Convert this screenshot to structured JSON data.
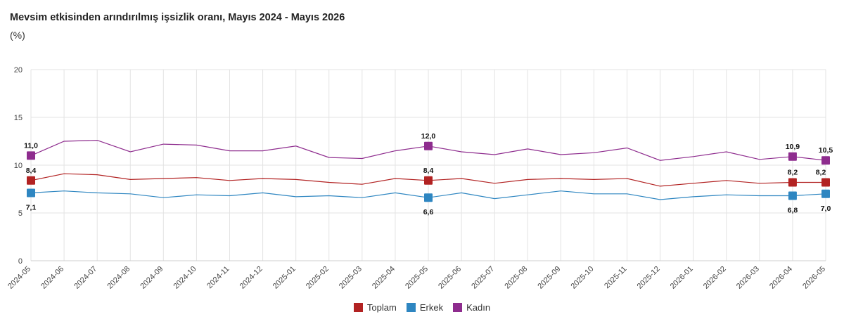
{
  "header": {
    "title": "Mevsim etkisinden arındırılmış işsizlik oranı, Mayıs 2024 - Mayıs 2026",
    "unit": "(%)"
  },
  "chart_data": {
    "type": "line",
    "title": "Mevsim etkisinden arındırılmış işsizlik oranı, Mayıs 2024 - Mayıs 2026",
    "subtitle": "(%)",
    "xlabel": "",
    "ylabel": "",
    "ylim": [
      0,
      20
    ],
    "yticks": [
      0,
      5,
      10,
      15,
      20
    ],
    "grid": true,
    "legend_position": "bottom",
    "categories": [
      "2024-05",
      "2024-06",
      "2024-07",
      "2024-08",
      "2024-09",
      "2024-10",
      "2024-11",
      "2024-12",
      "2025-01",
      "2025-02",
      "2025-03",
      "2025-04",
      "2025-05",
      "2025-06",
      "2025-07",
      "2025-08",
      "2025-09",
      "2025-10",
      "2025-11",
      "2025-12",
      "2026-01",
      "2026-02",
      "2026-03",
      "2026-04",
      "2026-05"
    ],
    "series": [
      {
        "name": "Toplam",
        "color": "#b22222",
        "values": [
          8.4,
          9.1,
          9.0,
          8.5,
          8.6,
          8.7,
          8.4,
          8.6,
          8.5,
          8.2,
          8.0,
          8.6,
          8.4,
          8.6,
          8.1,
          8.5,
          8.6,
          8.5,
          8.6,
          7.8,
          8.1,
          8.4,
          8.1,
          8.2,
          8.2
        ],
        "markers": [
          {
            "index": 0,
            "label": "8,4"
          },
          {
            "index": 12,
            "label": "8,4"
          },
          {
            "index": 23,
            "label": "8,2"
          },
          {
            "index": 24,
            "label": "8,2"
          }
        ]
      },
      {
        "name": "Erkek",
        "color": "#2e86c1",
        "values": [
          7.1,
          7.3,
          7.1,
          7.0,
          6.6,
          6.9,
          6.8,
          7.1,
          6.7,
          6.8,
          6.6,
          7.1,
          6.6,
          7.1,
          6.5,
          6.9,
          7.3,
          7.0,
          7.0,
          6.4,
          6.7,
          6.9,
          6.8,
          6.8,
          7.0
        ],
        "markers": [
          {
            "index": 0,
            "label": "7,1"
          },
          {
            "index": 12,
            "label": "6,6"
          },
          {
            "index": 23,
            "label": "6,8"
          },
          {
            "index": 24,
            "label": "7,0"
          }
        ]
      },
      {
        "name": "Kadın",
        "color": "#8e2c8e",
        "values": [
          11.0,
          12.5,
          12.6,
          11.4,
          12.2,
          12.1,
          11.5,
          11.5,
          12.0,
          10.8,
          10.7,
          11.5,
          12.0,
          11.4,
          11.1,
          11.7,
          11.1,
          11.3,
          11.8,
          10.5,
          10.9,
          11.4,
          10.6,
          10.9,
          10.5
        ],
        "markers": [
          {
            "index": 0,
            "label": "11,0"
          },
          {
            "index": 12,
            "label": "12,0"
          },
          {
            "index": 23,
            "label": "10,9"
          },
          {
            "index": 24,
            "label": "10,5"
          }
        ]
      }
    ]
  }
}
